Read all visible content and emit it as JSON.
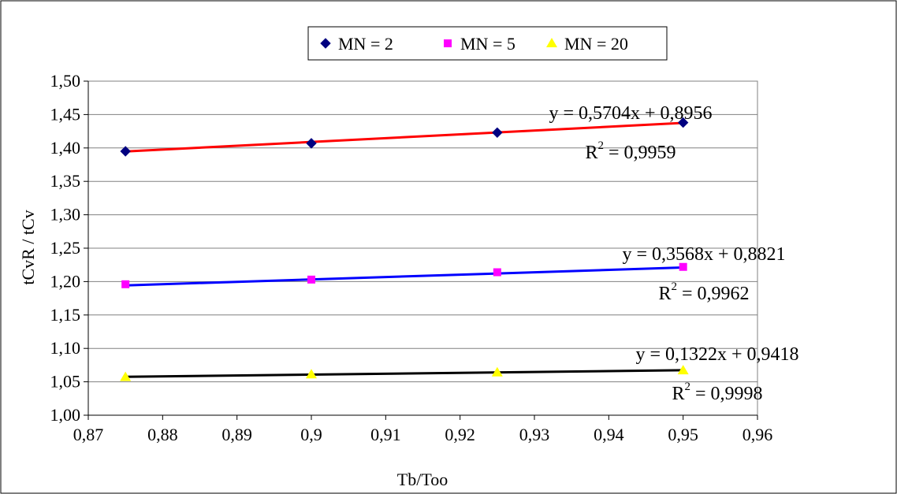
{
  "chart_data": {
    "type": "scatter",
    "xlabel": "Tb/Too",
    "ylabel": "tCvR / tCv",
    "xlim": [
      0.87,
      0.96
    ],
    "ylim": [
      1.0,
      1.5
    ],
    "x_ticks": [
      "0,87",
      "0,88",
      "0,89",
      "0,9",
      "0,91",
      "0,92",
      "0,93",
      "0,94",
      "0,95",
      "0,96"
    ],
    "y_ticks": [
      "1,00",
      "1,05",
      "1,10",
      "1,15",
      "1,20",
      "1,25",
      "1,30",
      "1,35",
      "1,40",
      "1,45",
      "1,50"
    ],
    "grid": "horizontal",
    "legend_position": "top-center",
    "series": [
      {
        "name": "MN = 2",
        "marker": "diamond",
        "color": "#000080",
        "x": [
          0.875,
          0.9,
          0.925,
          0.95
        ],
        "y": [
          1.395,
          1.407,
          1.423,
          1.438
        ],
        "trendline": {
          "slope": 0.5704,
          "intercept": 0.8956,
          "color": "#ff0000"
        },
        "equation": "y = 0,5704x + 0,8956",
        "r2_label": "R",
        "r2_value": " = 0,9959"
      },
      {
        "name": "MN = 5",
        "marker": "square",
        "color": "#ff00ff",
        "x": [
          0.875,
          0.9,
          0.925,
          0.95
        ],
        "y": [
          1.196,
          1.203,
          1.214,
          1.222
        ],
        "trendline": {
          "slope": 0.3568,
          "intercept": 0.8821,
          "color": "#0000ff"
        },
        "equation": "y = 0,3568x + 0,8821",
        "r2_label": "R",
        "r2_value": " = 0,9962"
      },
      {
        "name": "MN = 20",
        "marker": "triangle",
        "color": "#ffff00",
        "x": [
          0.875,
          0.9,
          0.925,
          0.95
        ],
        "y": [
          1.057,
          1.061,
          1.064,
          1.067
        ],
        "trendline": {
          "slope": 0.1322,
          "intercept": 0.9418,
          "color": "#000000"
        },
        "equation": "y = 0,1322x + 0,9418",
        "r2_label": "R",
        "r2_value": " = 0,9998"
      }
    ]
  }
}
